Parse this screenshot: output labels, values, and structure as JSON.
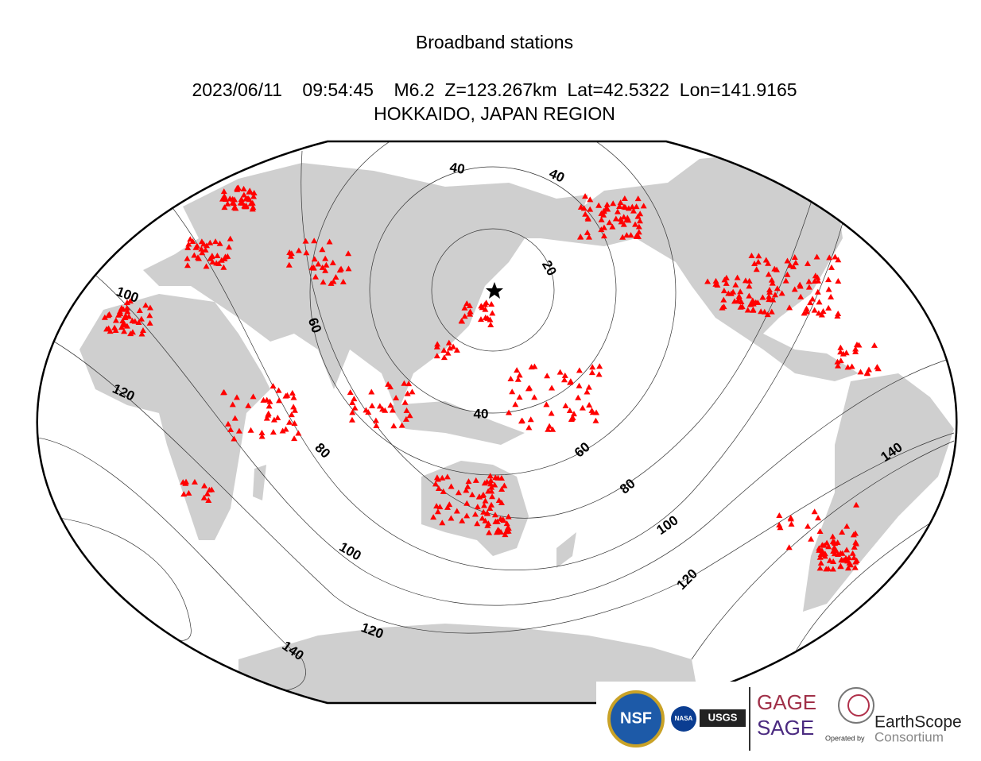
{
  "title": "Broadband stations",
  "event_line": "2023/06/11    09:54:45    M6.2  Z=123.267km  Lat=42.5322  Lon=141.9165",
  "region": "HOKKAIDO, JAPAN REGION",
  "contour_labels": [
    "40",
    "40",
    "20",
    "60",
    "100",
    "120",
    "80",
    "40",
    "60",
    "80",
    "100",
    "100",
    "120",
    "120",
    "140",
    "140"
  ],
  "logos": {
    "nsf": "NSF",
    "nasa": "NASA",
    "usgs": "USGS",
    "gage": "GAGE",
    "sage": "SAGE",
    "operated_by": "Operated by",
    "earthscope": "EarthScope",
    "consortium": "Consortium"
  }
}
